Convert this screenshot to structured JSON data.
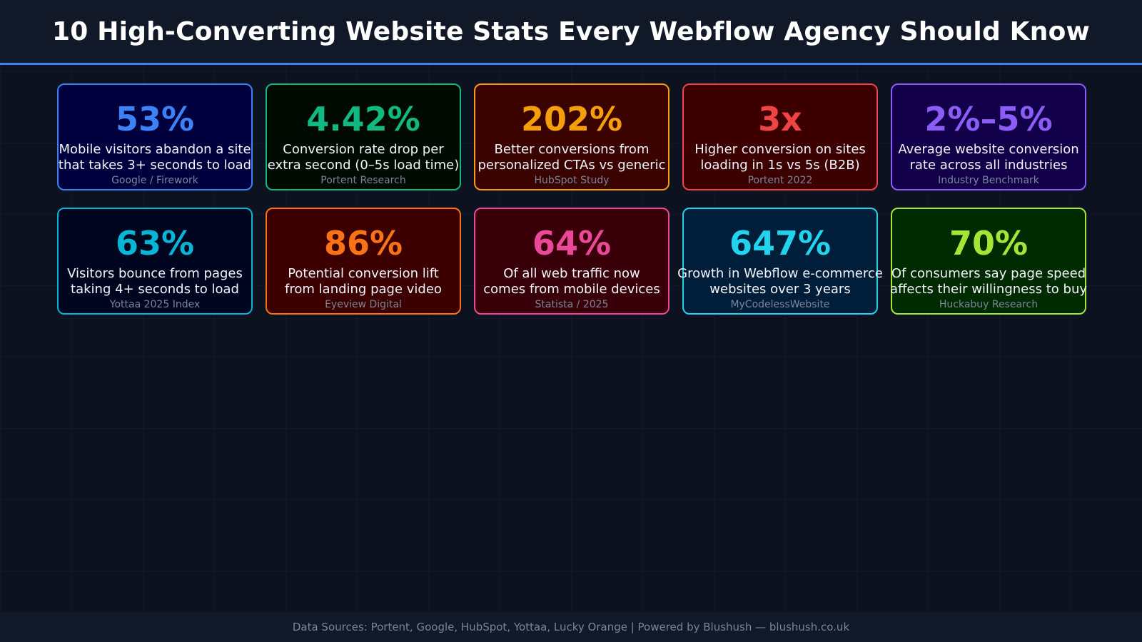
{
  "title": "10 High-Converting Website Stats Every Webflow Agency Should Know",
  "stats": [
    {
      "value": "53%",
      "line1": "Mobile visitors abandon a site",
      "line2": "that takes 3+ seconds to load",
      "source": "Google / Firework",
      "accent": "#3b82f6",
      "bg": "#01003f"
    },
    {
      "value": "4.42%",
      "line1": "Conversion rate drop per",
      "line2": "extra second (0–5s load time)",
      "source": "Portent Research",
      "accent": "#10b981",
      "bg": "#000a00"
    },
    {
      "value": "202%",
      "line1": "Better conversions from",
      "line2": "personalized CTAs vs generic",
      "source": "HubSpot Study",
      "accent": "#f59e0b",
      "bg": "#3a0300"
    },
    {
      "value": "3x",
      "line1": "Higher conversion on sites",
      "line2": "loading in 1s vs 5s (B2B)",
      "source": "Portent 2022",
      "accent": "#ef4444",
      "bg": "#3d0000"
    },
    {
      "value": "2%–5%",
      "line1": "Average website conversion",
      "line2": "rate across all industries",
      "source": "Industry Benchmark",
      "accent": "#8b5cf6",
      "bg": "#12004a"
    },
    {
      "value": "63%",
      "line1": "Visitors bounce from pages",
      "line2": "taking 4+ seconds to load",
      "source": "Yottaa 2025 Index",
      "accent": "#06b6d4",
      "bg": "#000620"
    },
    {
      "value": "86%",
      "line1": "Potential conversion lift",
      "line2": "from landing page video",
      "source": "Eyeview Digital",
      "accent": "#f97316",
      "bg": "#3d0000"
    },
    {
      "value": "64%",
      "line1": "Of all web traffic now",
      "line2": "comes from mobile devices",
      "source": "Statista / 2025",
      "accent": "#ec4899",
      "bg": "#3a000a"
    },
    {
      "value": "647%",
      "line1": "Growth in Webflow e-commerce",
      "line2": "websites over 3 years",
      "source": "MyCodelessWebsite",
      "accent": "#22d3ee",
      "bg": "#001e3a"
    },
    {
      "value": "70%",
      "line1": "Of consumers say page speed",
      "line2": "affects their willingness to buy",
      "source": "Huckabuy Research",
      "accent": "#a3e635",
      "bg": "#002a00"
    }
  ],
  "footer": "Data Sources: Portent, Google, HubSpot, Yottaa, Lucky Orange | Powered by Blushush — blushush.co.uk"
}
